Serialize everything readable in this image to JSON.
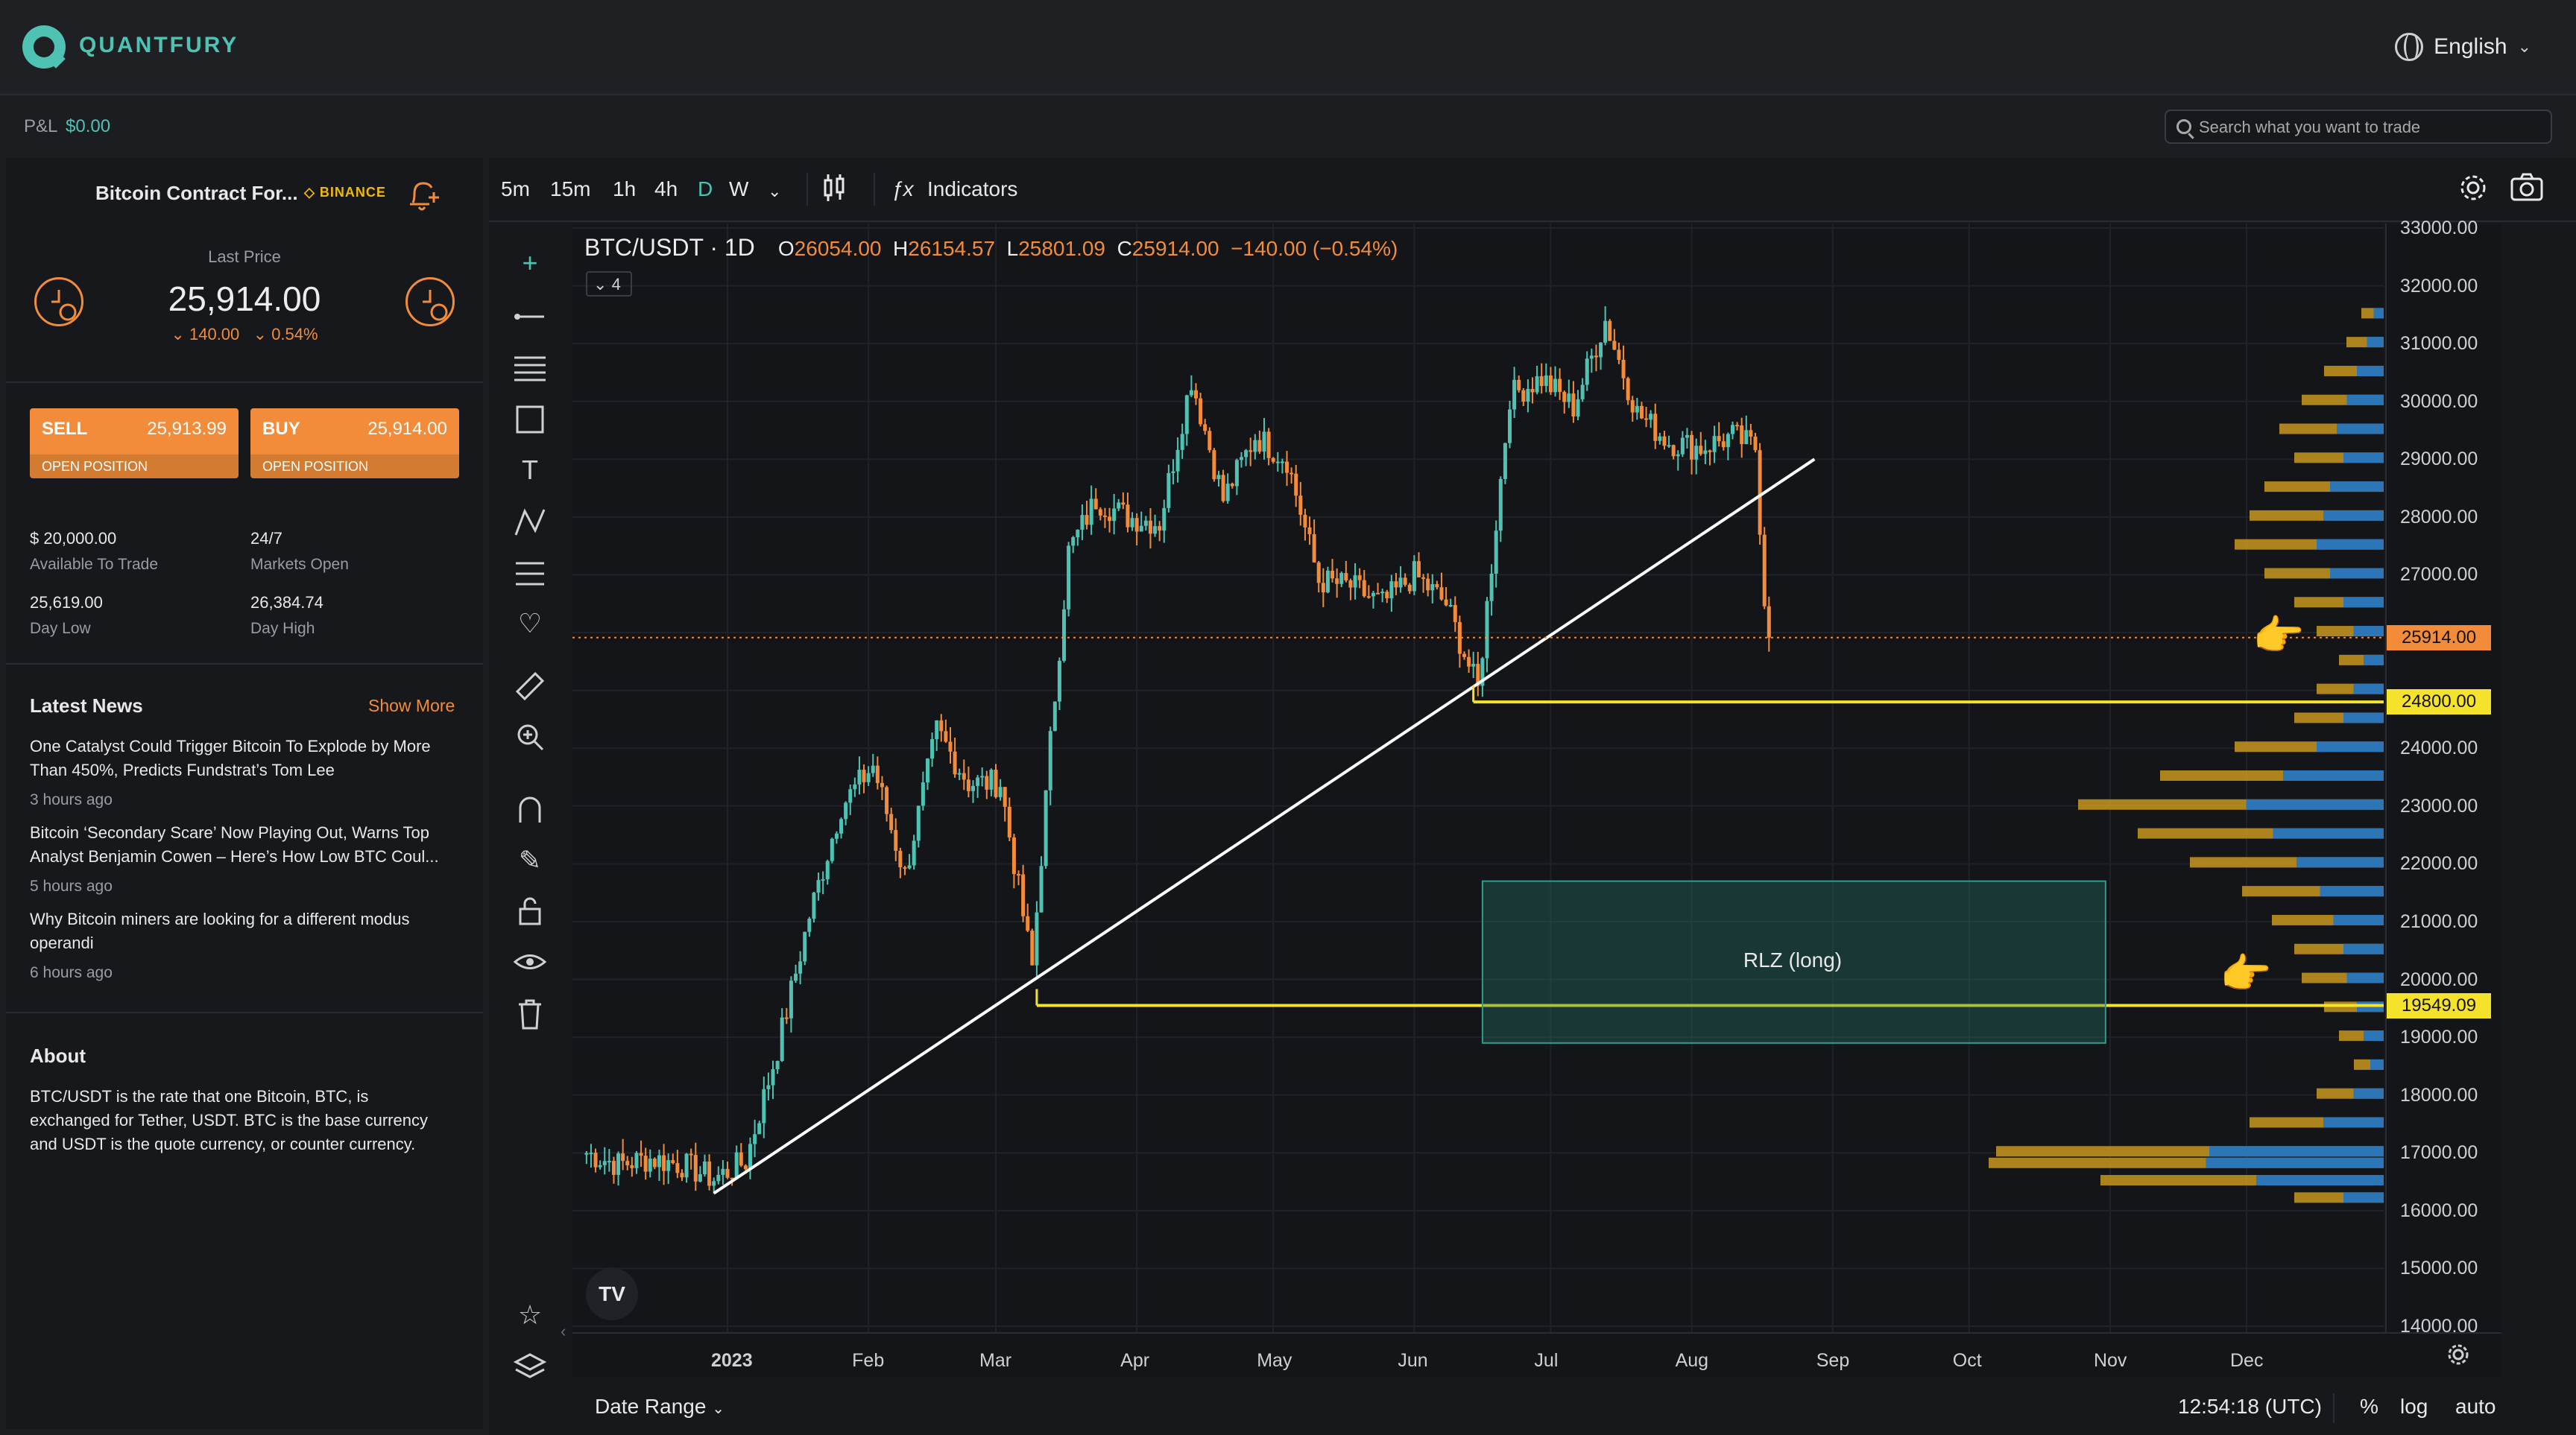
{
  "header": {
    "brand": "QUANTFURY",
    "language": "English",
    "pnl_label": "P&L",
    "pnl_value": "$0.00",
    "search_placeholder": "Search what you want to trade"
  },
  "instrument": {
    "name": "Bitcoin Contract For...",
    "exchange": "BINANCE",
    "last_price_label": "Last Price",
    "last_price": "25,914.00",
    "change_abs": "140.00",
    "change_pct": "0.54%",
    "sell_label": "SELL",
    "sell_price": "25,913.99",
    "buy_label": "BUY",
    "buy_price": "25,914.00",
    "open_position": "OPEN POSITION",
    "stats": [
      {
        "value": "$ 20,000.00",
        "label": "Available To Trade"
      },
      {
        "value": "24/7",
        "label": "Markets Open"
      },
      {
        "value": "25,619.00",
        "label": "Day Low"
      },
      {
        "value": "26,384.74",
        "label": "Day High"
      }
    ]
  },
  "news": {
    "title": "Latest News",
    "show_more": "Show More",
    "items": [
      {
        "line1": "One Catalyst Could Trigger Bitcoin To Explode by More",
        "line2": "Than 450%, Predicts Fundstrat’s Tom Lee",
        "time": "3 hours ago"
      },
      {
        "line1": "Bitcoin ‘Secondary Scare’ Now Playing Out, Warns Top",
        "line2": "Analyst Benjamin Cowen – Here’s How Low BTC Coul...",
        "time": "5 hours ago"
      },
      {
        "line1": "Why Bitcoin miners are looking for a different modus",
        "line2": "operandi",
        "time": "6 hours ago"
      }
    ]
  },
  "about": {
    "title": "About",
    "line1": "BTC/USDT is the rate that one Bitcoin, BTC, is",
    "line2": "exchanged for Tether, USDT. BTC is the base currency",
    "line3": "and USDT is the quote currency, or counter currency."
  },
  "toolbar": {
    "timeframes": [
      "5m",
      "15m",
      "1h",
      "4h",
      "D",
      "W"
    ],
    "active_timeframe": "D",
    "indicators": "Indicators"
  },
  "chart_legend": {
    "symbol": "BTC/USDT · 1D",
    "open_label": "O",
    "open": "26054.00",
    "high_label": "H",
    "high": "26154.57",
    "low_label": "L",
    "low": "25801.09",
    "close_label": "C",
    "close": "25914.00",
    "change": "−140.00 (−0.54%)",
    "indicator_count": "4"
  },
  "bottom": {
    "date_range": "Date Range",
    "clock": "12:54:18 (UTC)",
    "pct": "%",
    "log": "log",
    "auto": "auto"
  },
  "annotations": {
    "zone_label": "RLZ (long)"
  },
  "colors": {
    "accent": "#4fc3b3",
    "orange": "#f28c3a",
    "up": "#4fc3b3",
    "down": "#f28c3a",
    "level": "#f5e32b",
    "volume_profile_a": "#c8961f",
    "volume_profile_b": "#1e73c8"
  },
  "chart_data": {
    "type": "candlestick",
    "symbol": "BTC/USDT",
    "interval": "1D",
    "x_ticks": [
      "2023",
      "Feb",
      "Mar",
      "Apr",
      "May",
      "Jun",
      "Jul",
      "Aug",
      "Sep",
      "Oct",
      "Nov",
      "Dec"
    ],
    "y_ticks": [
      33000,
      32000,
      31000,
      30000,
      29000,
      28000,
      27000,
      26000,
      25000,
      24000,
      23000,
      22000,
      21000,
      20000,
      19000,
      18000,
      17000,
      16000,
      15000,
      14000
    ],
    "y_tick_labels": [
      "33000.00",
      "32000.00",
      "31000.00",
      "30000.00",
      "29000.00",
      "28000.00",
      "27000.00",
      "",
      "",
      "24000.00",
      "23000.00",
      "22000.00",
      "21000.00",
      "20000.00",
      "19000.00",
      "18000.00",
      "17000.00",
      "16000.00",
      "15000.00",
      "14000.00"
    ],
    "ylim": [
      14000,
      33300
    ],
    "price_levels": [
      {
        "value": 25914.0,
        "label": "25914.00",
        "kind": "last"
      },
      {
        "value": 24800.0,
        "label": "24800.00",
        "kind": "horizontal"
      },
      {
        "value": 19549.09,
        "label": "19549.09",
        "kind": "horizontal"
      }
    ],
    "trendline": {
      "from": {
        "x": "2022-12-29",
        "y": 16300
      },
      "to": {
        "x": "2023-08-28",
        "y": 29000
      }
    },
    "zone": {
      "label": "RLZ (long)",
      "x_from": "2023-06-16",
      "x_to": "2023-10-31",
      "y_from": 18900,
      "y_to": 21700
    },
    "closes": [
      [
        "2022-12-01",
        17000
      ],
      [
        "2022-12-08",
        16800
      ],
      [
        "2022-12-15",
        16900
      ],
      [
        "2022-12-22",
        16800
      ],
      [
        "2022-12-29",
        16550
      ],
      [
        "2023-01-05",
        16850
      ],
      [
        "2023-01-12",
        18800
      ],
      [
        "2023-01-19",
        21100
      ],
      [
        "2023-01-26",
        23000
      ],
      [
        "2023-02-02",
        23700
      ],
      [
        "2023-02-09",
        21800
      ],
      [
        "2023-02-16",
        24300
      ],
      [
        "2023-02-23",
        23400
      ],
      [
        "2023-03-02",
        23400
      ],
      [
        "2023-03-09",
        20200
      ],
      [
        "2023-03-13",
        24100
      ],
      [
        "2023-03-17",
        27400
      ],
      [
        "2023-03-23",
        28300
      ],
      [
        "2023-03-30",
        28000
      ],
      [
        "2023-04-06",
        27900
      ],
      [
        "2023-04-13",
        30400
      ],
      [
        "2023-04-20",
        28300
      ],
      [
        "2023-04-27",
        29400
      ],
      [
        "2023-05-04",
        29000
      ],
      [
        "2023-05-11",
        26900
      ],
      [
        "2023-05-18",
        26800
      ],
      [
        "2023-05-25",
        26500
      ],
      [
        "2023-06-01",
        27000
      ],
      [
        "2023-06-08",
        26500
      ],
      [
        "2023-06-15",
        25000
      ],
      [
        "2023-06-22",
        30100
      ],
      [
        "2023-06-29",
        30400
      ],
      [
        "2023-07-06",
        29900
      ],
      [
        "2023-07-13",
        31400
      ],
      [
        "2023-07-20",
        29800
      ],
      [
        "2023-07-27",
        29300
      ],
      [
        "2023-08-03",
        29200
      ],
      [
        "2023-08-10",
        29400
      ],
      [
        "2023-08-15",
        29200
      ],
      [
        "2023-08-17",
        26600
      ],
      [
        "2023-08-18",
        25914
      ]
    ]
  }
}
